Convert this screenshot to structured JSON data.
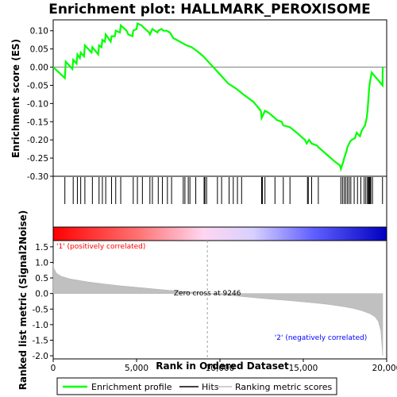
{
  "chart_data": {
    "type": "line",
    "title": "Enrichment plot: HALLMARK_PEROXISOME",
    "xlabel": "Rank in Ordered Dataset",
    "xlim": [
      0,
      20000
    ],
    "x_ticks": [
      "0",
      "5,000",
      "10,000",
      "15,000",
      "20,000"
    ],
    "x_tick_values": [
      0,
      5000,
      10000,
      15000,
      20000
    ],
    "es_panel": {
      "ylabel": "Enrichment score (ES)",
      "ylim": [
        -0.3,
        0.13
      ],
      "y_ticks": [
        "0.10",
        "0.05",
        "0.00",
        "-0.05",
        "-0.10",
        "-0.15",
        "-0.20",
        "-0.25",
        "-0.30"
      ],
      "y_tick_values": [
        0.1,
        0.05,
        0.0,
        -0.05,
        -0.1,
        -0.15,
        -0.2,
        -0.25,
        -0.3
      ],
      "series": [
        {
          "name": "Enrichment profile",
          "color": "#00ff00",
          "x": [
            0,
            700,
            750,
            1150,
            1200,
            1400,
            1450,
            1600,
            1650,
            1850,
            1900,
            2300,
            2350,
            2700,
            2750,
            2900,
            2950,
            3100,
            3150,
            3450,
            3500,
            3700,
            3750,
            4000,
            4050,
            4400,
            4500,
            4750,
            4800,
            5000,
            5050,
            5300,
            5400,
            5750,
            5800,
            5900,
            5950,
            6250,
            6300,
            6500,
            6600,
            6800,
            7000,
            7200,
            7800,
            8000,
            8300,
            8600,
            9000,
            9300,
            9700,
            10100,
            10500,
            11000,
            11400,
            12000,
            12450,
            12500,
            12700,
            12900,
            13300,
            13400,
            13700,
            13800,
            14200,
            14600,
            15100,
            15200,
            15350,
            15500,
            15800,
            15900,
            16400,
            16900,
            17200,
            17250,
            17400,
            17450,
            17600,
            17650,
            17800,
            17900,
            18100,
            18200,
            18400,
            18500,
            18700,
            18800,
            18850,
            18900,
            18950,
            19000,
            19100,
            19750,
            19760
          ],
          "y": [
            0.0,
            -0.03,
            0.015,
            -0.005,
            0.02,
            0.01,
            0.035,
            0.025,
            0.04,
            0.03,
            0.06,
            0.04,
            0.055,
            0.035,
            0.06,
            0.055,
            0.075,
            0.07,
            0.09,
            0.07,
            0.085,
            0.085,
            0.1,
            0.095,
            0.115,
            0.1,
            0.09,
            0.085,
            0.1,
            0.105,
            0.12,
            0.115,
            0.11,
            0.095,
            0.09,
            0.1,
            0.105,
            0.095,
            0.1,
            0.105,
            0.1,
            0.1,
            0.095,
            0.08,
            0.065,
            0.06,
            0.055,
            0.045,
            0.03,
            0.015,
            -0.005,
            -0.025,
            -0.045,
            -0.06,
            -0.075,
            -0.095,
            -0.12,
            -0.14,
            -0.12,
            -0.125,
            -0.14,
            -0.145,
            -0.15,
            -0.16,
            -0.165,
            -0.18,
            -0.2,
            -0.21,
            -0.2,
            -0.21,
            -0.215,
            -0.22,
            -0.24,
            -0.26,
            -0.27,
            -0.28,
            -0.26,
            -0.25,
            -0.23,
            -0.22,
            -0.205,
            -0.2,
            -0.195,
            -0.18,
            -0.19,
            -0.175,
            -0.16,
            -0.14,
            -0.12,
            -0.09,
            -0.06,
            -0.04,
            -0.015,
            -0.05,
            0.0
          ]
        }
      ],
      "hits_name": "Hits",
      "hits": [
        700,
        1200,
        1450,
        1650,
        1900,
        2350,
        2750,
        2950,
        3150,
        3500,
        3750,
        4050,
        4800,
        5050,
        5350,
        5800,
        5950,
        6300,
        6550,
        6850,
        7100,
        7800,
        7900,
        8100,
        8200,
        8550,
        9050,
        9100,
        9200,
        9850,
        10100,
        10550,
        10800,
        11050,
        11300,
        12500,
        12550,
        12700,
        13300,
        13800,
        14200,
        15250,
        15300,
        15500,
        15900,
        17250,
        17350,
        17450,
        17550,
        17650,
        17750,
        17850,
        18050,
        18250,
        18450,
        18650,
        18750,
        18850,
        18900,
        18950,
        19000,
        19050,
        19150,
        19750
      ]
    },
    "ranked_panel": {
      "ylabel": "Ranked list metric (Signal2Noise)",
      "ylim": [
        -2.1,
        1.7
      ],
      "y_ticks": [
        "1.5",
        "1.0",
        "0.5",
        "0.0",
        "-0.5",
        "-1.0",
        "-1.5",
        "-2.0"
      ],
      "y_tick_values": [
        1.5,
        1.0,
        0.5,
        0.0,
        -0.5,
        -1.0,
        -1.5,
        -2.0
      ],
      "series_name": "Ranking metric scores",
      "series_color": "#c0c0c0",
      "x": [
        0,
        50,
        200,
        500,
        1000,
        2000,
        3000,
        4000,
        5000,
        6000,
        7000,
        8000,
        9000,
        9246,
        10000,
        11000,
        12000,
        13000,
        14000,
        15000,
        16000,
        16500,
        17000,
        17500,
        18000,
        18500,
        19000,
        19300,
        19500,
        19650,
        19760
      ],
      "values": [
        0.95,
        0.8,
        0.65,
        0.55,
        0.47,
        0.38,
        0.31,
        0.25,
        0.2,
        0.15,
        0.1,
        0.06,
        0.02,
        0.0,
        -0.04,
        -0.08,
        -0.13,
        -0.18,
        -0.22,
        -0.27,
        -0.32,
        -0.35,
        -0.39,
        -0.43,
        -0.48,
        -0.55,
        -0.65,
        -0.75,
        -0.9,
        -1.2,
        -2.0
      ],
      "zero_cross_label": "Zero cross at 9246",
      "zero_cross_value": 9246,
      "pos_label": "'1' (positively correlated)",
      "pos_color": "#ff0000",
      "neg_label": "'2' (negatively correlated)",
      "neg_color": "#0000ff"
    },
    "legend": {
      "placement": "bottom",
      "entries": [
        "Enrichment profile",
        "Hits",
        "Ranking metric scores"
      ]
    }
  }
}
